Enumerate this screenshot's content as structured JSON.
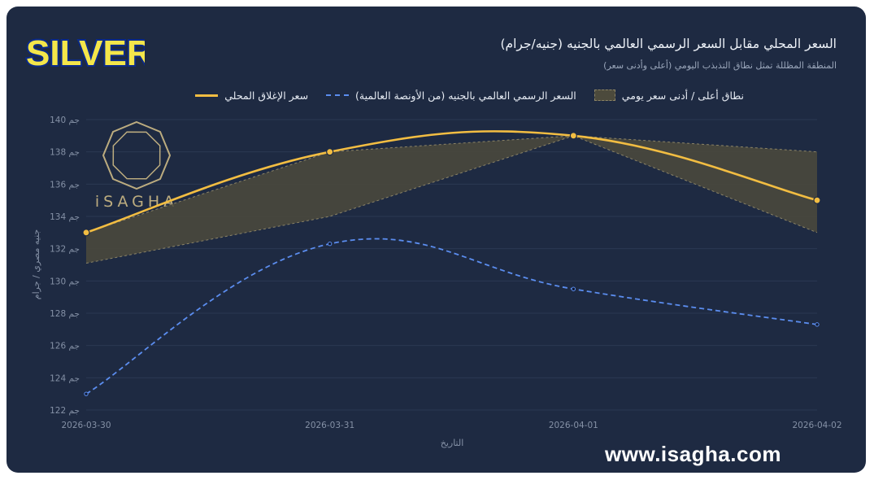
{
  "logo_text": "SILVER",
  "brand_mark": "iSAGHA",
  "watermark": "www.isagha.com",
  "colors": {
    "background": "#1e2a42",
    "local": "#f2bd42",
    "global": "#5b8def",
    "range_fill": "#4c4a3c"
  },
  "chart_data": {
    "type": "line",
    "title": "السعر المحلي مقابل السعر الرسمي العالمي بالجنيه (جنيه/جرام)",
    "subtitle": "المنطقة المظللة تمثل نطاق التذبذب اليومي (أعلى وأدنى سعر)",
    "xlabel": "التاريخ",
    "ylabel": "جنيه مصري / جرام",
    "x": [
      "2026-03-30",
      "2026-03-31",
      "2026-04-01",
      "2026-04-02"
    ],
    "ylim": [
      122,
      140
    ],
    "yticks": [
      {
        "value": 122,
        "label": "122 جم"
      },
      {
        "value": 124,
        "label": "124 جم"
      },
      {
        "value": 126,
        "label": "126 جم"
      },
      {
        "value": 128,
        "label": "128 جم"
      },
      {
        "value": 130,
        "label": "130 جم"
      },
      {
        "value": 132,
        "label": "132 جم"
      },
      {
        "value": 134,
        "label": "134 جم"
      },
      {
        "value": 136,
        "label": "136 جم"
      },
      {
        "value": 138,
        "label": "138 جم"
      },
      {
        "value": 140,
        "label": "140 جم"
      }
    ],
    "series": [
      {
        "name": "سعر الإغلاق المحلي",
        "values": [
          133,
          138,
          139,
          135
        ],
        "color": "#f2bd42",
        "style": "solid"
      },
      {
        "name": "السعر الرسمي العالمي بالجنيه (من الأونصة العالمية)",
        "values": [
          123,
          132.3,
          129.5,
          127.3
        ],
        "color": "#5b8def",
        "style": "dashed"
      }
    ],
    "range": {
      "name": "نطاق أعلى / أدنى سعر يومي",
      "high": [
        133,
        138,
        139,
        138
      ],
      "low": [
        131.1,
        134,
        139,
        133
      ]
    },
    "grid": true,
    "legend": "top"
  }
}
